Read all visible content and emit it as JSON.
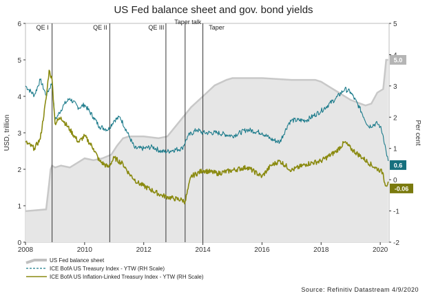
{
  "chart_data": {
    "type": "line",
    "title": "US Fed balance sheet and gov. bond yields",
    "ylabel_left": "USD, trillion",
    "ylabel_right": "Per cent",
    "x_ticks": [
      "2008",
      "2010",
      "2012",
      "2014",
      "2016",
      "2018",
      "2020"
    ],
    "xlim": [
      2008.0,
      2020.3
    ],
    "ylim_left": [
      0,
      6
    ],
    "ylim_right": [
      -2,
      5
    ],
    "y_ticks_left": [
      "0",
      "1",
      "2",
      "3",
      "4",
      "5",
      "6"
    ],
    "y_ticks_right": [
      "-2",
      "-1",
      "0",
      "1",
      "2",
      "3",
      "4",
      "5"
    ],
    "annotations": [
      {
        "label": "QE I",
        "x": 2008.9
      },
      {
        "label": "QE II",
        "x": 2010.85
      },
      {
        "label": "QE III",
        "x": 2012.75
      },
      {
        "label": "Taper talk",
        "x": 2013.4
      },
      {
        "label": "Taper",
        "x": 2014.0
      }
    ],
    "series": [
      {
        "name": "US Fed balance sheet",
        "axis": "left",
        "style": "area",
        "color": "#c8c8c8",
        "end_label": "5.0",
        "x": [
          2008.0,
          2008.7,
          2008.8,
          2008.85,
          2008.9,
          2009.0,
          2009.2,
          2009.5,
          2009.8,
          2010.0,
          2010.3,
          2010.6,
          2010.9,
          2011.1,
          2011.3,
          2011.5,
          2012.0,
          2012.5,
          2012.8,
          2013.0,
          2013.3,
          2013.6,
          2014.0,
          2014.4,
          2014.8,
          2015.0,
          2016.0,
          2017.0,
          2017.5,
          2017.8,
          2018.0,
          2018.5,
          2019.0,
          2019.5,
          2019.7,
          2019.9,
          2020.0,
          2020.1,
          2020.15,
          2020.2,
          2020.27
        ],
        "values": [
          0.85,
          0.9,
          1.6,
          2.0,
          2.1,
          2.05,
          2.1,
          2.05,
          2.2,
          2.3,
          2.25,
          2.3,
          2.4,
          2.65,
          2.85,
          2.9,
          2.9,
          2.85,
          2.9,
          3.1,
          3.4,
          3.7,
          4.0,
          4.3,
          4.45,
          4.5,
          4.5,
          4.45,
          4.45,
          4.45,
          4.4,
          4.15,
          3.9,
          3.75,
          3.8,
          4.1,
          4.15,
          4.2,
          4.6,
          5.0,
          5.0
        ]
      },
      {
        "name": "ICE BofA US Treasury Index - YTW (RH Scale)",
        "axis": "right",
        "style": "dashed",
        "color": "#1a7a8a",
        "end_label": "0.6",
        "x": [
          2008.0,
          2008.3,
          2008.5,
          2008.7,
          2008.9,
          2009.0,
          2009.3,
          2009.5,
          2009.8,
          2010.0,
          2010.3,
          2010.5,
          2010.8,
          2011.0,
          2011.2,
          2011.5,
          2011.7,
          2012.0,
          2012.3,
          2012.6,
          2012.8,
          2013.0,
          2013.3,
          2013.5,
          2013.8,
          2014.0,
          2014.5,
          2015.0,
          2015.5,
          2016.0,
          2016.3,
          2016.6,
          2016.9,
          2017.0,
          2017.5,
          2018.0,
          2018.5,
          2018.8,
          2019.0,
          2019.3,
          2019.6,
          2019.9,
          2020.0,
          2020.1,
          2020.2,
          2020.27
        ],
        "values": [
          3.0,
          2.7,
          3.2,
          2.7,
          3.1,
          1.9,
          2.4,
          2.6,
          2.3,
          2.4,
          2.0,
          1.7,
          1.6,
          1.9,
          2.0,
          1.4,
          1.0,
          1.0,
          1.05,
          0.9,
          0.9,
          0.95,
          1.0,
          1.4,
          1.6,
          1.5,
          1.5,
          1.4,
          1.6,
          1.5,
          1.3,
          1.2,
          1.8,
          1.9,
          1.9,
          2.2,
          2.6,
          2.9,
          2.8,
          2.3,
          1.7,
          1.8,
          1.7,
          1.4,
          0.9,
          0.6
        ]
      },
      {
        "name": "ICE BofA US Inflation-Linked Treasury Index - YTW (RH Scale)",
        "axis": "right",
        "style": "solid",
        "color": "#8a8a10",
        "end_label": "-0.06",
        "x": [
          2008.0,
          2008.3,
          2008.5,
          2008.7,
          2008.8,
          2008.9,
          2009.0,
          2009.2,
          2009.5,
          2009.8,
          2010.0,
          2010.3,
          2010.5,
          2010.8,
          2011.0,
          2011.3,
          2011.5,
          2011.8,
          2012.0,
          2012.3,
          2012.6,
          2012.8,
          2013.0,
          2013.3,
          2013.4,
          2013.6,
          2014.0,
          2014.5,
          2015.0,
          2015.5,
          2016.0,
          2016.3,
          2016.6,
          2017.0,
          2017.5,
          2018.0,
          2018.5,
          2018.8,
          2019.0,
          2019.4,
          2019.8,
          2020.0,
          2020.1,
          2020.15,
          2020.2,
          2020.27
        ],
        "values": [
          1.2,
          1.0,
          1.3,
          2.6,
          3.5,
          3.2,
          1.8,
          2.0,
          1.6,
          1.2,
          1.4,
          1.0,
          0.6,
          0.4,
          0.7,
          0.5,
          0.2,
          -0.1,
          -0.2,
          -0.35,
          -0.5,
          -0.55,
          -0.6,
          -0.65,
          -0.7,
          0.1,
          0.3,
          0.2,
          0.3,
          0.4,
          0.1,
          0.45,
          0.6,
          0.3,
          0.5,
          0.6,
          0.9,
          1.2,
          1.0,
          0.7,
          0.4,
          0.3,
          0.2,
          -0.1,
          -0.2,
          -0.06
        ]
      }
    ]
  },
  "source": "Source: Refinitiv Datastream 4/9/2020"
}
